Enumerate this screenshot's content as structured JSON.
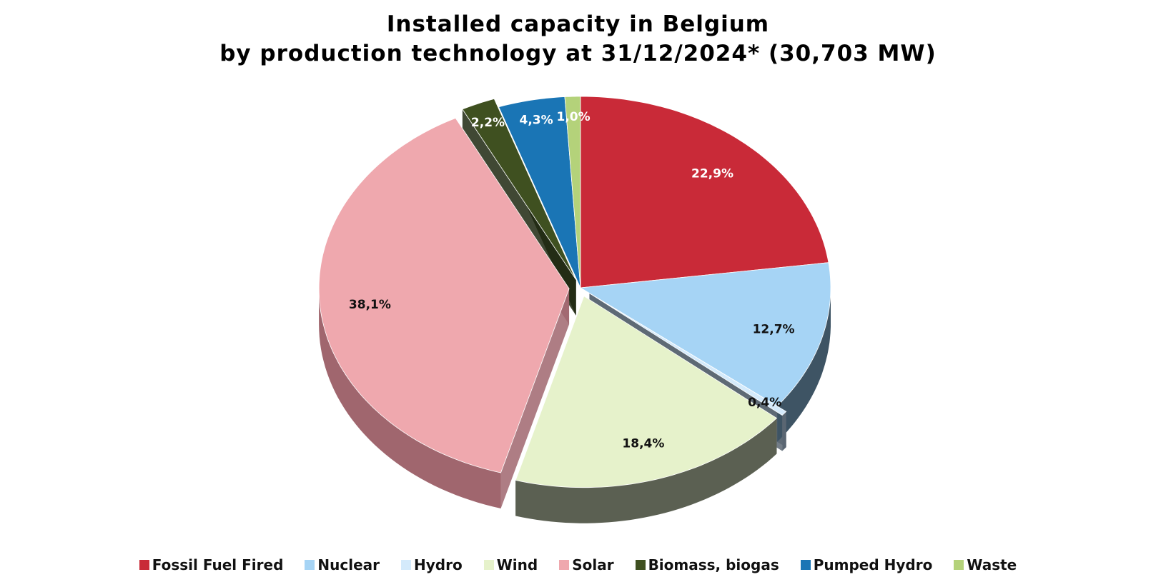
{
  "chart_data": {
    "type": "pie",
    "title_line1": "Installed capacity in Belgium",
    "title_line2": "by production technology at 31/12/2024* (30,703 MW)",
    "slices": [
      {
        "name": "Fossil Fuel Fired",
        "value": 22.9,
        "label": "22,9%",
        "color": "#c92a38",
        "side": "#8c1d27",
        "label_color": "#ffffff",
        "exploded": false
      },
      {
        "name": "Nuclear",
        "value": 12.7,
        "label": "12,7%",
        "color": "#a6d4f5",
        "side": "#3e5464",
        "label_color": "#111111",
        "exploded": false
      },
      {
        "name": "Hydro",
        "value": 0.4,
        "label": "0,4%",
        "color": "#d4eafb",
        "side": "#5a6672",
        "label_color": "#111111",
        "exploded": true
      },
      {
        "name": "Wind",
        "value": 18.4,
        "label": "18,4%",
        "color": "#e6f2cb",
        "side": "#5b6052",
        "label_color": "#111111",
        "exploded": true
      },
      {
        "name": "Solar",
        "value": 38.1,
        "label": "38,1%",
        "color": "#efa8ae",
        "side": "#a0666e",
        "label_color": "#111111",
        "exploded": true
      },
      {
        "name": "Biomass, biogas",
        "value": 2.2,
        "label": "2,2%",
        "color": "#3f5020",
        "side": "#1e2810",
        "label_color": "#ffffff",
        "exploded": true
      },
      {
        "name": "Pumped Hydro",
        "value": 4.3,
        "label": "4,3%",
        "color": "#1a75b5",
        "side": "#0e4a75",
        "label_color": "#ffffff",
        "exploded": false
      },
      {
        "name": "Waste",
        "value": 1.0,
        "label": "1,0%",
        "color": "#b4d27a",
        "side": "#6f8a3e",
        "label_color": "#ffffff",
        "exploded": false
      }
    ],
    "legend_position": "bottom"
  }
}
